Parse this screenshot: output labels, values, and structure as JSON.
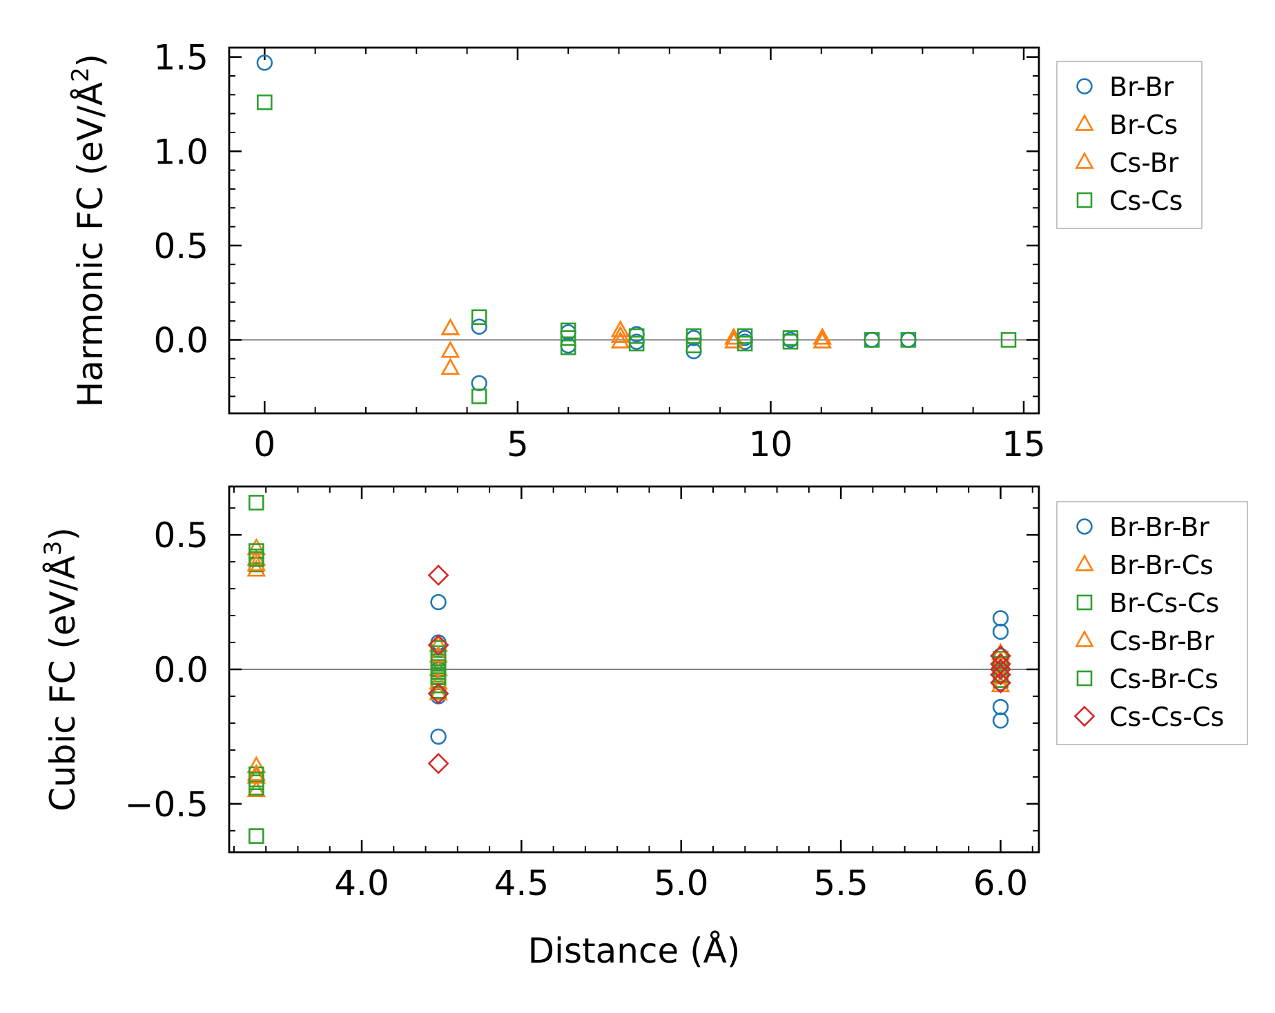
{
  "colors": {
    "blue": "#1f77b4",
    "orange": "#ff7f0e",
    "green": "#2ca02c",
    "red": "#d62728",
    "zero_line": "#808080",
    "axes": "#000000"
  },
  "chart_data": [
    {
      "type": "scatter",
      "panel": "top",
      "xlabel": "",
      "ylabel": "Harmonic FC (eV/Å²)",
      "ylabel_base": "Harmonic FC (eV/Å",
      "ylabel_exp": "2",
      "ylabel_close": ")",
      "xlim": [
        -0.7,
        15.3
      ],
      "ylim": [
        -0.39,
        1.55
      ],
      "xticks": [
        0,
        5,
        10,
        15
      ],
      "xtick_labels": [
        "0",
        "5",
        "10",
        "15"
      ],
      "yticks": [
        0.0,
        0.5,
        1.0,
        1.5
      ],
      "ytick_labels": [
        "0.0",
        "0.5",
        "1.0",
        "1.5"
      ],
      "zero_line": true,
      "legend": [
        "Br-Br",
        "Br-Cs",
        "Cs-Br",
        "Cs-Cs"
      ],
      "legend_position": "outside-right-top",
      "series": [
        {
          "name": "Br-Br",
          "marker": "circle",
          "color": "#1f77b4",
          "x": [
            0,
            4.24,
            4.24,
            6.0,
            6.0,
            7.35,
            7.35,
            8.48,
            8.48,
            9.49,
            9.49,
            10.39,
            12.0,
            12.72
          ],
          "y": [
            1.47,
            0.07,
            -0.23,
            0.04,
            -0.03,
            0.03,
            -0.01,
            0.01,
            -0.06,
            0.01,
            -0.01,
            0.0,
            0.0,
            0.0
          ]
        },
        {
          "name": "Br-Cs",
          "marker": "triangle",
          "color": "#ff7f0e",
          "x": [
            3.67,
            3.67,
            3.67,
            7.03,
            7.03,
            7.03,
            9.27,
            9.27,
            11.02,
            11.02
          ],
          "y": [
            0.06,
            -0.06,
            -0.15,
            0.05,
            0.02,
            -0.01,
            0.01,
            -0.01,
            0.01,
            -0.01
          ]
        },
        {
          "name": "Cs-Br",
          "marker": "triangle",
          "color": "#ff7f0e",
          "x": [
            3.67,
            3.67,
            3.67,
            7.03,
            7.03,
            7.03,
            9.27,
            9.27,
            11.02,
            11.02
          ],
          "y": [
            0.06,
            -0.06,
            -0.15,
            0.05,
            0.02,
            -0.01,
            0.01,
            -0.01,
            0.01,
            -0.01
          ]
        },
        {
          "name": "Cs-Cs",
          "marker": "square",
          "color": "#2ca02c",
          "x": [
            0,
            4.24,
            4.24,
            6.0,
            6.0,
            6.0,
            7.35,
            7.35,
            8.48,
            8.48,
            9.49,
            9.49,
            10.39,
            10.39,
            12.0,
            12.72,
            14.7
          ],
          "y": [
            1.26,
            0.12,
            -0.3,
            0.05,
            0.01,
            -0.04,
            0.02,
            -0.02,
            0.02,
            -0.03,
            0.02,
            -0.02,
            0.01,
            -0.01,
            0.0,
            0.0,
            0.0
          ]
        }
      ]
    },
    {
      "type": "scatter",
      "panel": "bottom",
      "xlabel": "Distance (Å)",
      "ylabel": "Cubic FC (eV/Å³)",
      "ylabel_base": "Cubic FC (eV/Å",
      "ylabel_exp": "3",
      "ylabel_close": ")",
      "xlim": [
        3.585,
        6.12
      ],
      "ylim": [
        -0.68,
        0.68
      ],
      "xticks": [
        4.0,
        4.5,
        5.0,
        5.5,
        6.0
      ],
      "xtick_labels": [
        "4.0",
        "4.5",
        "5.0",
        "5.5",
        "6.0"
      ],
      "yticks": [
        -0.5,
        0.0,
        0.5
      ],
      "ytick_labels": [
        "−0.5",
        "0.0",
        "0.5"
      ],
      "zero_line": true,
      "legend": [
        "Br-Br-Br",
        "Br-Br-Cs",
        "Br-Cs-Cs",
        "Cs-Br-Br",
        "Cs-Br-Cs",
        "Cs-Cs-Cs"
      ],
      "legend_position": "outside-right-top",
      "series": [
        {
          "name": "Br-Br-Br",
          "marker": "circle",
          "color": "#1f77b4",
          "x": [
            4.24,
            4.24,
            4.24,
            4.24,
            4.24,
            6.0,
            6.0,
            6.0,
            6.0,
            6.0,
            6.0
          ],
          "y": [
            0.25,
            0.1,
            -0.1,
            -0.25,
            0.0,
            0.19,
            0.14,
            -0.14,
            -0.19,
            0.05,
            -0.05
          ]
        },
        {
          "name": "Br-Br-Cs",
          "marker": "triangle",
          "color": "#ff7f0e",
          "x": [
            3.67,
            3.67,
            3.67,
            3.67,
            3.67,
            3.67,
            4.24,
            4.24,
            4.24,
            6.0,
            6.0
          ],
          "y": [
            0.45,
            0.41,
            0.37,
            -0.36,
            -0.4,
            -0.45,
            0.09,
            0.0,
            -0.09,
            0.06,
            -0.06
          ]
        },
        {
          "name": "Br-Cs-Cs",
          "marker": "square",
          "color": "#2ca02c",
          "x": [
            3.67,
            3.67,
            3.67,
            3.67,
            3.67,
            3.67,
            3.67,
            3.67,
            4.24,
            4.24,
            4.24,
            4.24,
            4.24,
            4.24,
            4.24,
            4.24,
            4.24,
            6.0,
            6.0,
            6.0
          ],
          "y": [
            0.62,
            0.44,
            0.42,
            0.39,
            -0.39,
            -0.42,
            -0.44,
            -0.62,
            0.08,
            0.06,
            0.04,
            0.02,
            0.0,
            -0.02,
            -0.04,
            -0.06,
            -0.08,
            0.04,
            0.0,
            -0.04
          ]
        },
        {
          "name": "Cs-Br-Br",
          "marker": "triangle",
          "color": "#ff7f0e",
          "x": [
            3.67,
            3.67,
            4.24,
            4.24,
            6.0,
            6.0
          ],
          "y": [
            0.39,
            -0.39,
            0.05,
            -0.05,
            0.03,
            -0.03
          ]
        },
        {
          "name": "Cs-Br-Cs",
          "marker": "square",
          "color": "#2ca02c",
          "x": [
            3.67,
            3.67,
            4.24,
            4.24,
            4.24,
            6.0,
            6.0
          ],
          "y": [
            0.41,
            -0.41,
            0.03,
            -0.01,
            -0.03,
            0.02,
            -0.02
          ]
        },
        {
          "name": "Cs-Cs-Cs",
          "marker": "diamond",
          "color": "#d62728",
          "x": [
            4.24,
            4.24,
            4.24,
            4.24,
            6.0,
            6.0,
            6.0,
            6.0,
            6.0
          ],
          "y": [
            0.35,
            0.09,
            -0.09,
            -0.35,
            0.05,
            0.02,
            0.0,
            -0.02,
            -0.05
          ]
        }
      ]
    }
  ]
}
